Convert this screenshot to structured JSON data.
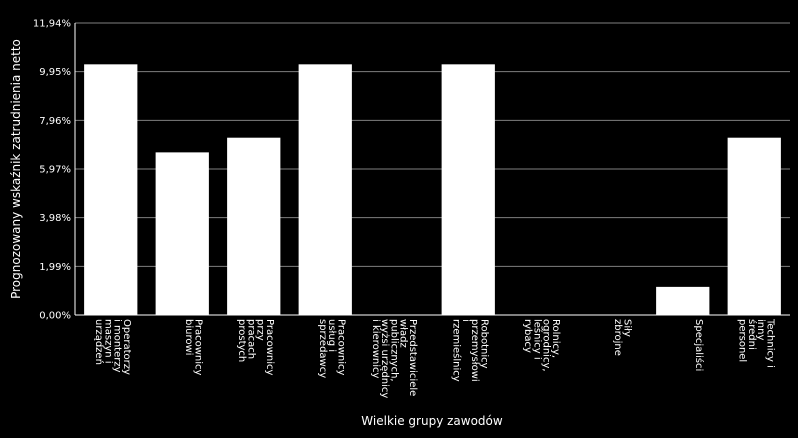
{
  "chart_data": {
    "type": "bar",
    "ylabel": "Prognozowany wskaźnik zatrudnienia netto",
    "xlabel": "Wielkie grupy zawodów",
    "ylim": [
      0,
      11.94
    ],
    "yticks": [
      "0,00%",
      "1,99%",
      "3,98%",
      "5,97%",
      "7,96%",
      "9,95%",
      "11,94%"
    ],
    "grid": true,
    "bar_color": "#ffffff",
    "background": "#000000",
    "categories": [
      [
        "Operatorzy",
        "i monterzy",
        "maszyn i",
        "urządzeń"
      ],
      [
        "Pracownicy",
        "biurowi"
      ],
      [
        "Pracownicy",
        "przy",
        "pracach",
        "prostych"
      ],
      [
        "Pracownicy",
        "usług i",
        "sprzedawcy"
      ],
      [
        "Przedstawiciele",
        "władz",
        "publicznych,",
        "wyżsi urzędnicy",
        "i kierownicy"
      ],
      [
        "Robotnicy",
        "przemysłowi",
        "i",
        "rzemieślnicy"
      ],
      [
        "Rolnicy,",
        "ogrodnicy,",
        "leśnicy i",
        "rybacy"
      ],
      [
        "Siły",
        "zbrojne"
      ],
      [
        "Specjaliści"
      ],
      [
        "Technicy i",
        "inny",
        "średni",
        "personel"
      ]
    ],
    "values": [
      10.25,
      6.65,
      7.25,
      10.25,
      0,
      10.25,
      0,
      0,
      1.15,
      7.25
    ]
  }
}
